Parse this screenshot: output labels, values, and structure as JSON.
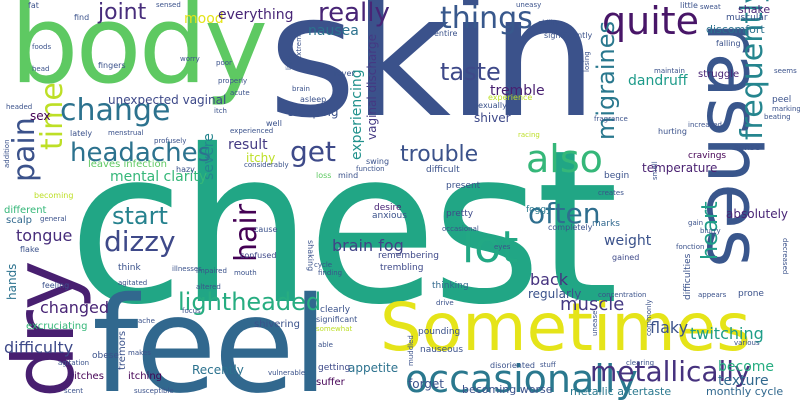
{
  "palette": {
    "dark_purple": "#440154",
    "indigo": "#46327e",
    "blue": "#365c8d",
    "teal_blue": "#277f8e",
    "teal": "#1fa187",
    "green": "#4ac16d",
    "light_green": "#a0da39",
    "yellow": "#e5e419"
  },
  "words": [
    {
      "text": "chest",
      "color": "#21a685"
    },
    {
      "text": "skin",
      "color": "#3b528b"
    },
    {
      "text": "feel",
      "color": "#31688e"
    },
    {
      "text": "body",
      "color": "#5ec962"
    },
    {
      "text": "Sometimes",
      "color": "#e5e419"
    },
    {
      "text": "rashes",
      "color": "#39568c"
    },
    {
      "text": "dry",
      "color": "#481f70"
    },
    {
      "text": "occasionally",
      "color": "#2a788e"
    },
    {
      "text": "lot",
      "color": "#22a884"
    },
    {
      "text": "quite",
      "color": "#481668"
    },
    {
      "text": "frequently",
      "color": "#25858e"
    },
    {
      "text": "lightheaded",
      "color": "#27ad81"
    },
    {
      "text": "also",
      "color": "#35b779"
    },
    {
      "text": "change",
      "color": "#2c728e"
    },
    {
      "text": "things",
      "color": "#38588c"
    },
    {
      "text": "often",
      "color": "#2e6e8e"
    },
    {
      "text": "pain",
      "color": "#3b528b"
    },
    {
      "text": "time",
      "color": "#bddf26"
    },
    {
      "text": "really",
      "color": "#482576"
    },
    {
      "text": "headaches",
      "color": "#2c728e"
    },
    {
      "text": "hair",
      "color": "#440154"
    },
    {
      "text": "dizzy",
      "color": "#3e4989"
    },
    {
      "text": "start",
      "color": "#26828e"
    },
    {
      "text": "get",
      "color": "#3e4a89"
    },
    {
      "text": "taste",
      "color": "#3e4989"
    },
    {
      "text": "migraines",
      "color": "#2a788e"
    },
    {
      "text": "trouble",
      "color": "#3b528b"
    },
    {
      "text": "heart",
      "color": "#1f9e89"
    },
    {
      "text": "joint",
      "color": "#472d7b"
    },
    {
      "text": "muscle",
      "color": "#443983"
    },
    {
      "text": "metallically",
      "color": "#46327e"
    },
    {
      "text": "difficulty",
      "color": "#3e4a89"
    },
    {
      "text": "twitching",
      "color": "#1f9e89"
    },
    {
      "text": "tongue",
      "color": "#472d7b"
    },
    {
      "text": "brain fog",
      "color": "#414487"
    },
    {
      "text": "changed",
      "color": "#482475"
    },
    {
      "text": "flaky",
      "color": "#3b528b"
    },
    {
      "text": "back",
      "color": "#46337f"
    },
    {
      "text": "mood",
      "color": "#e5e419"
    },
    {
      "text": "everything",
      "color": "#482677"
    },
    {
      "text": "tremble",
      "color": "#482071"
    },
    {
      "text": "dandruff",
      "color": "#1e9b8a"
    },
    {
      "text": "nausea",
      "color": "#2c728e"
    },
    {
      "text": "severe",
      "color": "#25858e"
    },
    {
      "text": "result",
      "color": "#443a83"
    },
    {
      "text": "mental clarity",
      "color": "#35b779"
    },
    {
      "text": "weight",
      "color": "#3b528b"
    },
    {
      "text": "experiencing",
      "color": "#21918c"
    },
    {
      "text": "vaginal discharge",
      "color": "#443983"
    },
    {
      "text": "unexpected vaginal",
      "color": "#3e4989"
    },
    {
      "text": "sleeping",
      "color": "#3b528b"
    },
    {
      "text": "itchy",
      "color": "#bddf26"
    },
    {
      "text": "temperature",
      "color": "#481f70"
    },
    {
      "text": "become",
      "color": "#27ad81"
    },
    {
      "text": "texture",
      "color": "#31688e"
    },
    {
      "text": "absolutely",
      "color": "#482576"
    },
    {
      "text": "hands",
      "color": "#2c728e"
    },
    {
      "text": "forget",
      "color": "#3b528b"
    },
    {
      "text": "regularly",
      "color": "#3b528b"
    },
    {
      "text": "becoming worse",
      "color": "#3b528b"
    },
    {
      "text": "metallic aftertaste",
      "color": "#2a788e"
    },
    {
      "text": "monthly cycle",
      "color": "#31688e"
    },
    {
      "text": "appetite",
      "color": "#2c728e"
    },
    {
      "text": "shiver",
      "color": "#3e4989"
    },
    {
      "text": "sex",
      "color": "#440154"
    },
    {
      "text": "Recently",
      "color": "#2c728e"
    },
    {
      "text": "leaves infection",
      "color": "#5ec962"
    },
    {
      "text": "different",
      "color": "#35b779"
    },
    {
      "text": "scalp",
      "color": "#31688e"
    },
    {
      "text": "excruciating",
      "color": "#35b779"
    },
    {
      "text": "itches",
      "color": "#440154"
    },
    {
      "text": "itching",
      "color": "#440154"
    },
    {
      "text": "tremors",
      "color": "#3b528b"
    },
    {
      "text": "shivering",
      "color": "#3b528b"
    },
    {
      "text": "suffer",
      "color": "#440154"
    },
    {
      "text": "getting",
      "color": "#3e4a89"
    },
    {
      "text": "nauseous",
      "color": "#3b528b"
    },
    {
      "text": "pounding",
      "color": "#3b528b"
    },
    {
      "text": "foggy",
      "color": "#2a788e"
    },
    {
      "text": "marks",
      "color": "#31688e"
    },
    {
      "text": "pretty",
      "color": "#3e4989"
    },
    {
      "text": "desire",
      "color": "#482475"
    },
    {
      "text": "anxious",
      "color": "#3b528b"
    },
    {
      "text": "remembering",
      "color": "#3e4989"
    },
    {
      "text": "trembling",
      "color": "#3e4989"
    },
    {
      "text": "thinking",
      "color": "#31688e"
    },
    {
      "text": "difficult",
      "color": "#3b528b"
    },
    {
      "text": "begin",
      "color": "#3b528b"
    },
    {
      "text": "present",
      "color": "#3b528b"
    },
    {
      "text": "cravings",
      "color": "#440154"
    },
    {
      "text": "difficulties",
      "color": "#3b528b"
    },
    {
      "text": "shake",
      "color": "#482475"
    },
    {
      "text": "discomfort",
      "color": "#2c728e"
    },
    {
      "text": "muscular",
      "color": "#3b528b"
    },
    {
      "text": "struggle",
      "color": "#482475"
    },
    {
      "text": "peel",
      "color": "#3b528b"
    },
    {
      "text": "sense",
      "color": "#3b528b"
    },
    {
      "text": "prone",
      "color": "#3b528b"
    },
    {
      "text": "gained",
      "color": "#3e4989"
    },
    {
      "text": "completely",
      "color": "#3b528b"
    },
    {
      "text": "fever",
      "color": "#3b528b"
    },
    {
      "text": "asleep",
      "color": "#3b528b"
    },
    {
      "text": "well",
      "color": "#3b528b"
    },
    {
      "text": "swing",
      "color": "#3b528b"
    },
    {
      "text": "mind",
      "color": "#3b528b"
    },
    {
      "text": "loss",
      "color": "#5ec962"
    },
    {
      "text": "shaking",
      "color": "#3b528b"
    },
    {
      "text": "confused",
      "color": "#3e4989"
    },
    {
      "text": "cause",
      "color": "#3b528b"
    },
    {
      "text": "feeling",
      "color": "#3b528b"
    },
    {
      "text": "flake",
      "color": "#3b528b"
    },
    {
      "text": "lately",
      "color": "#3b528b"
    },
    {
      "text": "think",
      "color": "#3b528b"
    },
    {
      "text": "clearly",
      "color": "#3b528b"
    },
    {
      "text": "hazy",
      "color": "#3b528b"
    },
    {
      "text": "significant",
      "color": "#3b528b"
    },
    {
      "text": "becoming",
      "color": "#bddf26"
    },
    {
      "text": "entire",
      "color": "#3b528b"
    },
    {
      "text": "sexually",
      "color": "#3b528b"
    },
    {
      "text": "experience",
      "color": "#bddf26"
    },
    {
      "text": "hurting",
      "color": "#3b528b"
    },
    {
      "text": "significantly",
      "color": "#3b528b"
    },
    {
      "text": "falling",
      "color": "#3b528b"
    },
    {
      "text": "fat",
      "color": "#3b528b"
    },
    {
      "text": "find",
      "color": "#3b528b"
    },
    {
      "text": "little",
      "color": "#3b528b"
    },
    {
      "text": "fingers",
      "color": "#3b528b"
    },
    {
      "text": "foods",
      "color": "#3b528b"
    },
    {
      "text": "head",
      "color": "#3b528b"
    },
    {
      "text": "focus",
      "color": "#3b528b"
    },
    {
      "text": "scent",
      "color": "#3b528b"
    },
    {
      "text": "somewhat",
      "color": "#bddf26"
    },
    {
      "text": "smell",
      "color": "#3b528b"
    },
    {
      "text": "blurry",
      "color": "#3b528b"
    },
    {
      "text": "gain",
      "color": "#3b528b"
    },
    {
      "text": "maintain",
      "color": "#3b528b"
    },
    {
      "text": "increased",
      "color": "#3b528b"
    },
    {
      "text": "seems",
      "color": "#3b528b"
    },
    {
      "text": "concentration",
      "color": "#3b528b"
    },
    {
      "text": "drive",
      "color": "#3b528b"
    },
    {
      "text": "appears",
      "color": "#3b528b"
    },
    {
      "text": "various",
      "color": "#3b528b"
    },
    {
      "text": "fast",
      "color": "#3b528b"
    },
    {
      "text": "racing",
      "color": "#bddf26"
    },
    {
      "text": "sweat",
      "color": "#3b528b"
    },
    {
      "text": "properly",
      "color": "#3b528b"
    },
    {
      "text": "brain",
      "color": "#3b528b"
    },
    {
      "text": "headed",
      "color": "#3b528b"
    },
    {
      "text": "menstrual",
      "color": "#3b528b"
    },
    {
      "text": "itch",
      "color": "#3b528b"
    },
    {
      "text": "experienced",
      "color": "#3b528b"
    },
    {
      "text": "considerably",
      "color": "#3b528b"
    },
    {
      "text": "function",
      "color": "#3b528b"
    },
    {
      "text": "creates",
      "color": "#3b528b"
    },
    {
      "text": "occasional",
      "color": "#3b528b"
    },
    {
      "text": "altered",
      "color": "#3b528b"
    },
    {
      "text": "illnesses",
      "color": "#3b528b"
    },
    {
      "text": "impaired",
      "color": "#3b528b"
    },
    {
      "text": "agitated",
      "color": "#3b528b"
    },
    {
      "text": "cycle",
      "color": "#3b528b"
    },
    {
      "text": "finding",
      "color": "#3b528b"
    },
    {
      "text": "mouth",
      "color": "#3b528b"
    },
    {
      "text": "ache",
      "color": "#3b528b"
    },
    {
      "text": "makes",
      "color": "#3b528b"
    },
    {
      "text": "obese",
      "color": "#3b528b"
    },
    {
      "text": "agitation",
      "color": "#3b528b"
    },
    {
      "text": "vulnerable",
      "color": "#3b528b"
    },
    {
      "text": "able",
      "color": "#3b528b"
    },
    {
      "text": "susceptible",
      "color": "#3b528b"
    },
    {
      "text": "clearing",
      "color": "#3b528b"
    },
    {
      "text": "disoriented",
      "color": "#3b528b"
    },
    {
      "text": "stuff",
      "color": "#3b528b"
    },
    {
      "text": "muddled",
      "color": "#3b528b"
    },
    {
      "text": "commonly",
      "color": "#3b528b"
    },
    {
      "text": "unease",
      "color": "#3b528b"
    },
    {
      "text": "uneasy",
      "color": "#3b528b"
    },
    {
      "text": "ability",
      "color": "#3b528b"
    },
    {
      "text": "losing",
      "color": "#3b528b"
    },
    {
      "text": "extreme",
      "color": "#3b528b"
    },
    {
      "text": "light",
      "color": "#3b528b"
    },
    {
      "text": "poor",
      "color": "#3b528b"
    },
    {
      "text": "acute",
      "color": "#3b528b"
    },
    {
      "text": "profusely",
      "color": "#3b528b"
    },
    {
      "text": "addition",
      "color": "#3b528b"
    },
    {
      "text": "general",
      "color": "#3b528b"
    },
    {
      "text": "worry",
      "color": "#3b528b"
    },
    {
      "text": "sensed",
      "color": "#3b528b"
    },
    {
      "text": "markings",
      "color": "#3b528b"
    },
    {
      "text": "beating",
      "color": "#3b528b"
    },
    {
      "text": "fragrance",
      "color": "#3b528b"
    },
    {
      "text": "decreased",
      "color": "#3b528b"
    },
    {
      "text": "fonction",
      "color": "#3b528b"
    },
    {
      "text": "eyes",
      "color": "#3b528b"
    }
  ]
}
